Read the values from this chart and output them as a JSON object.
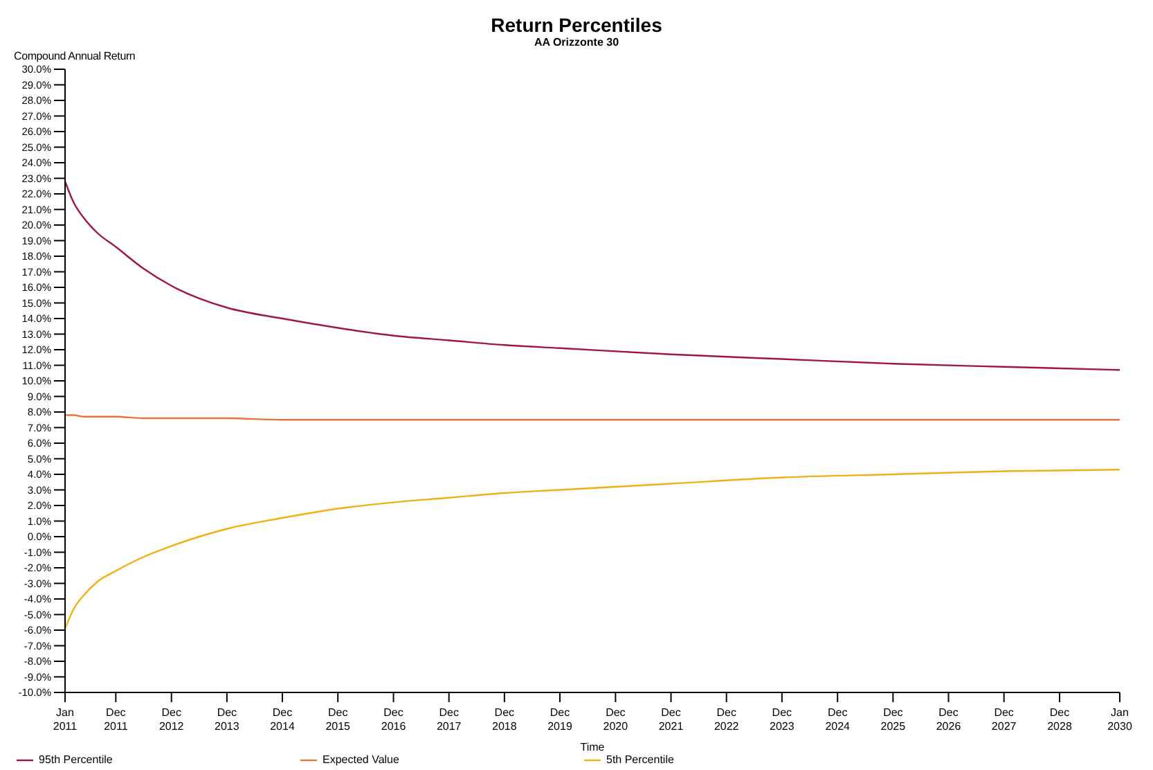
{
  "chart_data": {
    "type": "line",
    "title": "Return Percentiles",
    "subtitle": "AA Orizzonte 30",
    "xlabel": "Time",
    "ylabel": "Compound Annual Return",
    "x": [
      "2011-01",
      "2011-03",
      "2011-05",
      "2011-08",
      "2011-12",
      "2012-06",
      "2012-12",
      "2013-12",
      "2014-12",
      "2015-12",
      "2016-12",
      "2017-12",
      "2018-12",
      "2019-12",
      "2021-12",
      "2023-12",
      "2025-12",
      "2027-12",
      "2030-01"
    ],
    "series": [
      {
        "name": "95th Percentile",
        "color": "#a0144a",
        "values": [
          22.8,
          21.4,
          20.5,
          19.5,
          18.6,
          17.2,
          16.1,
          14.7,
          14.0,
          13.4,
          12.9,
          12.6,
          12.3,
          12.1,
          11.7,
          11.4,
          11.1,
          10.9,
          10.7
        ]
      },
      {
        "name": "Expected Value",
        "color": "#e8743b",
        "values": [
          7.8,
          7.8,
          7.7,
          7.7,
          7.7,
          7.6,
          7.6,
          7.6,
          7.5,
          7.5,
          7.5,
          7.5,
          7.5,
          7.5,
          7.5,
          7.5,
          7.5,
          7.5,
          7.5
        ]
      },
      {
        "name": "5th Percentile",
        "color": "#f0b010",
        "values": [
          -5.9,
          -4.6,
          -3.8,
          -2.9,
          -2.2,
          -1.3,
          -0.6,
          0.5,
          1.2,
          1.8,
          2.2,
          2.5,
          2.8,
          3.0,
          3.4,
          3.8,
          4.0,
          4.2,
          4.3
        ]
      }
    ],
    "xlim": [
      "2011-01",
      "2030-01"
    ],
    "xticks": [
      {
        "value": "2011-01",
        "label": "Jan 2011"
      },
      {
        "value": "2011-12",
        "label": "Dec 2011"
      },
      {
        "value": "2012-12",
        "label": "Dec 2012"
      },
      {
        "value": "2013-12",
        "label": "Dec 2013"
      },
      {
        "value": "2014-12",
        "label": "Dec 2014"
      },
      {
        "value": "2015-12",
        "label": "Dec 2015"
      },
      {
        "value": "2016-12",
        "label": "Dec 2016"
      },
      {
        "value": "2017-12",
        "label": "Dec 2017"
      },
      {
        "value": "2018-12",
        "label": "Dec 2018"
      },
      {
        "value": "2019-12",
        "label": "Dec 2019"
      },
      {
        "value": "2020-12",
        "label": "Dec 2020"
      },
      {
        "value": "2021-12",
        "label": "Dec 2021"
      },
      {
        "value": "2022-12",
        "label": "Dec 2022"
      },
      {
        "value": "2023-12",
        "label": "Dec 2023"
      },
      {
        "value": "2024-12",
        "label": "Dec 2024"
      },
      {
        "value": "2025-12",
        "label": "Dec 2025"
      },
      {
        "value": "2026-12",
        "label": "Dec 2026"
      },
      {
        "value": "2027-12",
        "label": "Dec 2027"
      },
      {
        "value": "2028-12",
        "label": "Dec 2028"
      },
      {
        "value": "2030-01",
        "label": "Jan 2030"
      }
    ],
    "ylim": [
      -10,
      30
    ],
    "yticks": [
      {
        "value": -10,
        "label": "-10.0%"
      },
      {
        "value": -9,
        "label": "-9.0%"
      },
      {
        "value": -8,
        "label": "-8.0%"
      },
      {
        "value": -7,
        "label": "-7.0%"
      },
      {
        "value": -6,
        "label": "-6.0%"
      },
      {
        "value": -5,
        "label": "-5.0%"
      },
      {
        "value": -4,
        "label": "-4.0%"
      },
      {
        "value": -3,
        "label": "-3.0%"
      },
      {
        "value": -2,
        "label": "-2.0%"
      },
      {
        "value": -1,
        "label": "-1.0%"
      },
      {
        "value": 0,
        "label": "0.0%"
      },
      {
        "value": 1,
        "label": "1.0%"
      },
      {
        "value": 2,
        "label": "2.0%"
      },
      {
        "value": 3,
        "label": "3.0%"
      },
      {
        "value": 4,
        "label": "4.0%"
      },
      {
        "value": 5,
        "label": "5.0%"
      },
      {
        "value": 6,
        "label": "6.0%"
      },
      {
        "value": 7,
        "label": "7.0%"
      },
      {
        "value": 8,
        "label": "8.0%"
      },
      {
        "value": 9,
        "label": "9.0%"
      },
      {
        "value": 10,
        "label": "10.0%"
      },
      {
        "value": 11,
        "label": "11.0%"
      },
      {
        "value": 12,
        "label": "12.0%"
      },
      {
        "value": 13,
        "label": "13.0%"
      },
      {
        "value": 14,
        "label": "14.0%"
      },
      {
        "value": 15,
        "label": "15.0%"
      },
      {
        "value": 16,
        "label": "16.0%"
      },
      {
        "value": 17,
        "label": "17.0%"
      },
      {
        "value": 18,
        "label": "18.0%"
      },
      {
        "value": 19,
        "label": "19.0%"
      },
      {
        "value": 20,
        "label": "20.0%"
      },
      {
        "value": 21,
        "label": "21.0%"
      },
      {
        "value": 22,
        "label": "22.0%"
      },
      {
        "value": 23,
        "label": "23.0%"
      },
      {
        "value": 24,
        "label": "24.0%"
      },
      {
        "value": 25,
        "label": "25.0%"
      },
      {
        "value": 26,
        "label": "26.0%"
      },
      {
        "value": 27,
        "label": "27.0%"
      },
      {
        "value": 28,
        "label": "28.0%"
      },
      {
        "value": 29,
        "label": "29.0%"
      },
      {
        "value": 30,
        "label": "30.0%"
      }
    ],
    "grid": false,
    "legend": "bottom",
    "marker": "none",
    "line_style": "solid"
  }
}
